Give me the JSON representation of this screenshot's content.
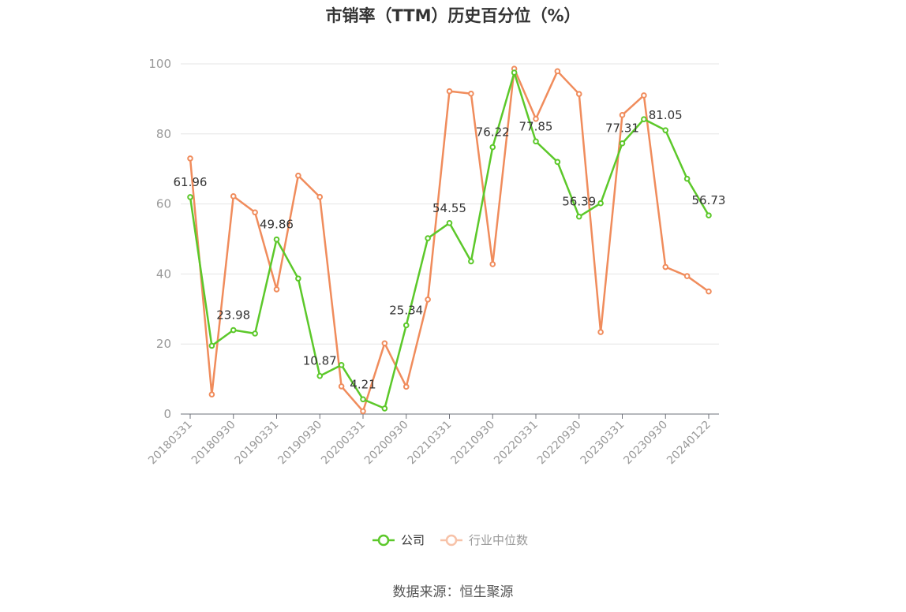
{
  "chart_data": {
    "type": "line",
    "title": "市销率（TTM）历史百分位（%）",
    "x": [
      "20180331",
      "20180630",
      "20180930",
      "20181231",
      "20190331",
      "20190630",
      "20190930",
      "20191231",
      "20200331",
      "20200630",
      "20200930",
      "20201231",
      "20210331",
      "20210630",
      "20210930",
      "20211231",
      "20220331",
      "20220630",
      "20220930",
      "20221231",
      "20230331",
      "20230630",
      "20230930",
      "20231231",
      "20240122"
    ],
    "x_tick_labels": [
      "20180331",
      "20180930",
      "20190331",
      "20190930",
      "20200331",
      "20200930",
      "20210331",
      "20210930",
      "20220331",
      "20220930",
      "20230331",
      "20230930",
      "20240122"
    ],
    "x_tick_indices": [
      0,
      2,
      4,
      6,
      8,
      10,
      12,
      14,
      16,
      18,
      20,
      22,
      24
    ],
    "ylim": [
      0,
      100
    ],
    "yticks": [
      "0",
      "20",
      "40",
      "60",
      "80",
      "100"
    ],
    "grid": true,
    "legend_position": "bottom",
    "series": [
      {
        "name": "公司",
        "color": "#5cc82a",
        "values": [
          61.96,
          19.5,
          23.98,
          23.0,
          49.86,
          38.7,
          10.87,
          14.0,
          4.21,
          1.6,
          25.34,
          50.2,
          54.55,
          43.6,
          76.22,
          97.5,
          77.85,
          72.0,
          56.39,
          60.2,
          77.31,
          84.2,
          81.05,
          67.2,
          56.73
        ],
        "labels": [
          "61.96",
          "",
          "23.98",
          "",
          "49.86",
          "",
          "10.87",
          "",
          "4.21",
          "",
          "25.34",
          "",
          "54.55",
          "",
          "76.22",
          "",
          "77.85",
          "",
          "56.39",
          "",
          "77.31",
          "",
          "81.05",
          "",
          "56.73"
        ]
      },
      {
        "name": "行业中位数",
        "color": "#f08c5c",
        "values": [
          73.0,
          5.6,
          62.2,
          57.6,
          35.6,
          68.1,
          62.0,
          7.9,
          0.8,
          20.2,
          7.8,
          32.7,
          92.2,
          91.5,
          42.8,
          98.6,
          84.3,
          97.9,
          91.4,
          23.4,
          85.4,
          91.0,
          42.0,
          39.4,
          35.0
        ]
      }
    ]
  },
  "source_note": "数据来源：恒生聚源"
}
